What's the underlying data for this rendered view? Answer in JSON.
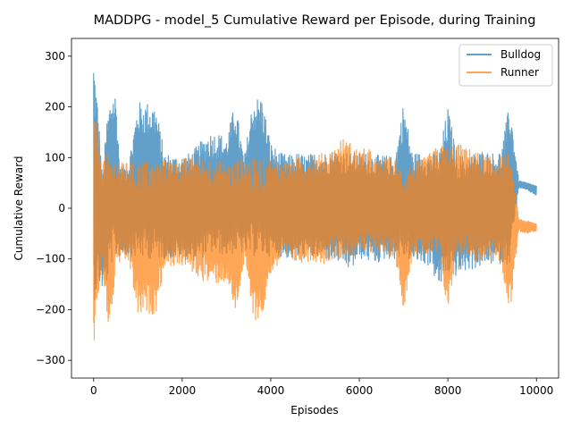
{
  "chart_data": {
    "type": "line",
    "title": "MADDPG - model_5 Cumulative Reward per Episode, during Training",
    "xlabel": "Episodes",
    "ylabel": "Cumulative Reward",
    "xlim": [
      -500,
      10500
    ],
    "ylim": [
      -335,
      335
    ],
    "xticks": [
      0,
      2000,
      4000,
      6000,
      8000,
      10000
    ],
    "yticks": [
      -300,
      -200,
      -100,
      0,
      100,
      200,
      300
    ],
    "grid": false,
    "legend_position": "top-right",
    "series": [
      {
        "name": "Bulldog",
        "color": "#1f77b4",
        "x": [
          0,
          100,
          200,
          300,
          400,
          500,
          600,
          800,
          1000,
          1200,
          1400,
          1600,
          1800,
          2000,
          2200,
          2400,
          2600,
          2800,
          3000,
          3200,
          3400,
          3600,
          3800,
          4000,
          4200,
          4400,
          4600,
          4800,
          5000,
          5200,
          5400,
          5600,
          5800,
          6000,
          6200,
          6400,
          6600,
          6800,
          7000,
          7200,
          7400,
          7600,
          7800,
          8000,
          8200,
          8400,
          8600,
          8800,
          9000,
          9200,
          9400,
          9600,
          9800,
          10000
        ],
        "max": [
          305,
          200,
          60,
          180,
          230,
          230,
          80,
          100,
          210,
          210,
          205,
          110,
          105,
          105,
          110,
          130,
          150,
          150,
          140,
          210,
          100,
          220,
          220,
          130,
          110,
          105,
          110,
          105,
          110,
          110,
          115,
          115,
          110,
          110,
          110,
          105,
          105,
          100,
          210,
          110,
          110,
          110,
          110,
          200,
          110,
          100,
          110,
          115,
          110,
          115,
          210,
          55,
          50,
          45
        ],
        "min": [
          -190,
          -150,
          -160,
          -150,
          -110,
          -100,
          -95,
          -95,
          -100,
          -100,
          -100,
          -100,
          -100,
          -100,
          -105,
          -100,
          -90,
          -90,
          -95,
          -90,
          -90,
          -95,
          -95,
          -95,
          -95,
          -100,
          -100,
          -100,
          -100,
          -100,
          -105,
          -110,
          -125,
          -100,
          -105,
          -110,
          -100,
          -100,
          -100,
          -105,
          -110,
          -115,
          -160,
          -130,
          -135,
          -125,
          -120,
          -115,
          -110,
          -110,
          -110,
          40,
          35,
          25
        ]
      },
      {
        "name": "Runner",
        "color": "#ff7f0e",
        "x": [
          0,
          100,
          200,
          300,
          400,
          500,
          600,
          800,
          1000,
          1200,
          1400,
          1600,
          1800,
          2000,
          2200,
          2400,
          2600,
          2800,
          3000,
          3200,
          3400,
          3600,
          3800,
          4000,
          4200,
          4400,
          4600,
          4800,
          5000,
          5200,
          5400,
          5600,
          5800,
          6000,
          6200,
          6400,
          6600,
          6800,
          7000,
          7200,
          7400,
          7600,
          7800,
          8000,
          8200,
          8400,
          8600,
          8800,
          9000,
          9200,
          9400,
          9600,
          9800,
          10000
        ],
        "max": [
          195,
          160,
          100,
          110,
          110,
          95,
          90,
          90,
          95,
          95,
          95,
          95,
          100,
          100,
          100,
          105,
          100,
          95,
          90,
          95,
          100,
          100,
          100,
          100,
          95,
          95,
          100,
          100,
          105,
          110,
          115,
          140,
          130,
          115,
          120,
          95,
          100,
          95,
          80,
          90,
          95,
          110,
          125,
          125,
          130,
          120,
          115,
          105,
          100,
          105,
          110,
          -20,
          -25,
          -30
        ],
        "min": [
          -305,
          -180,
          -120,
          -230,
          -230,
          -110,
          -110,
          -110,
          -215,
          -210,
          -210,
          -115,
          -115,
          -115,
          -125,
          -140,
          -150,
          -150,
          -145,
          -210,
          -110,
          -220,
          -220,
          -130,
          -115,
          -105,
          -110,
          -105,
          -105,
          -110,
          -100,
          -100,
          -95,
          -95,
          -90,
          -85,
          -95,
          -95,
          -200,
          -95,
          -90,
          -95,
          -95,
          -210,
          -95,
          -90,
          -105,
          -110,
          -100,
          -110,
          -210,
          -45,
          -50,
          -45
        ]
      }
    ]
  }
}
